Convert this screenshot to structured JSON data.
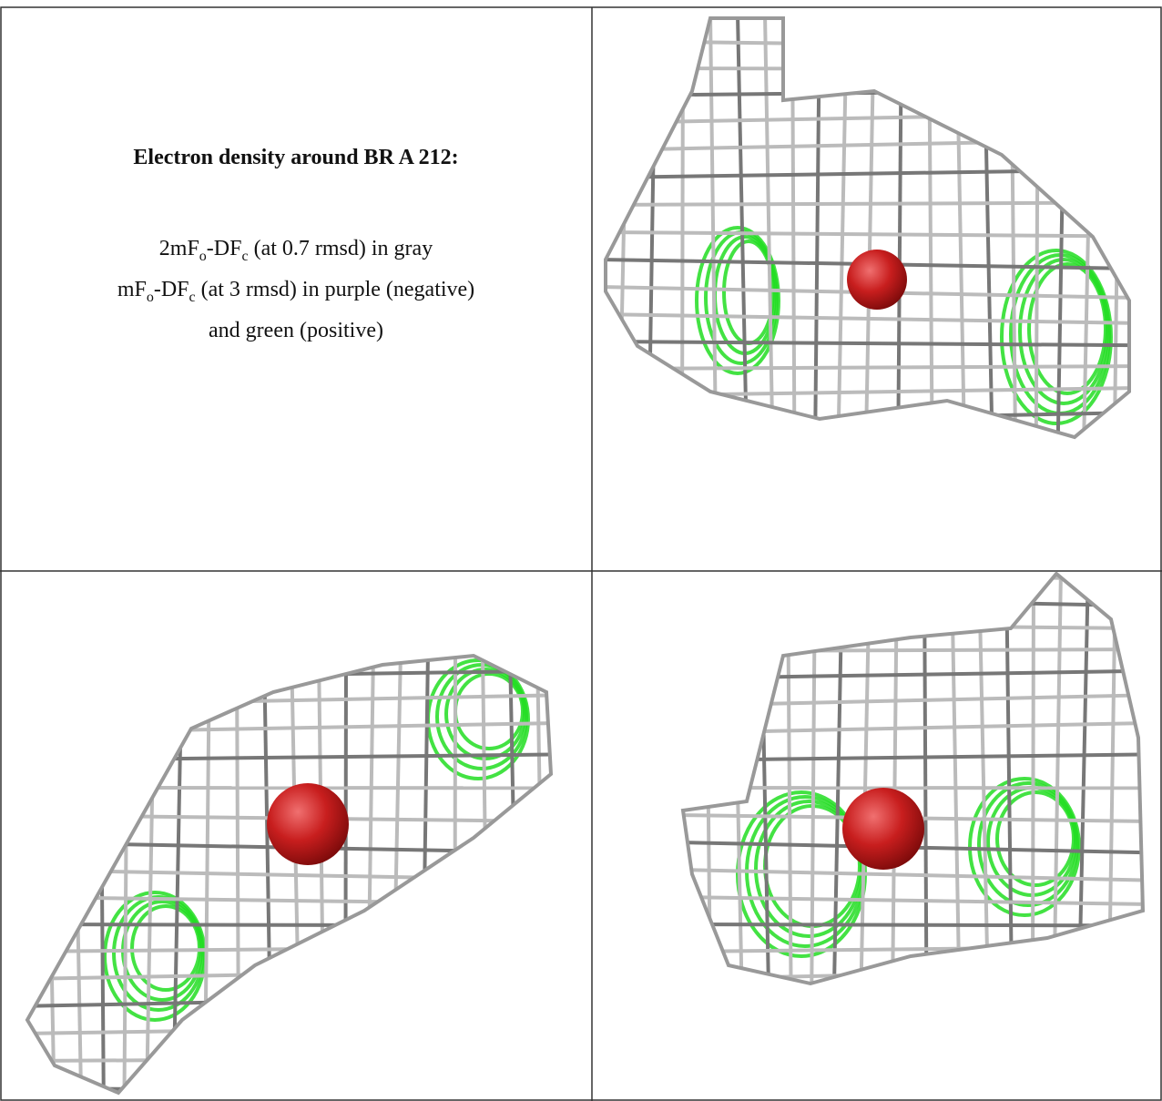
{
  "caption": {
    "title": "Electron density around BR A 212:",
    "lines": [
      [
        {
          "t": "2mF"
        },
        {
          "t": "o",
          "sub": true
        },
        {
          "t": "-DF"
        },
        {
          "t": "c",
          "sub": true
        },
        {
          "t": " (at 0.7 rmsd) in gray"
        }
      ],
      [
        {
          "t": "mF"
        },
        {
          "t": "o",
          "sub": true
        },
        {
          "t": "-DF"
        },
        {
          "t": "c",
          "sub": true
        },
        {
          "t": " (at 3 rmsd) in purple (negative)"
        }
      ],
      [
        {
          "t": "and green (positive)"
        }
      ]
    ]
  }
}
